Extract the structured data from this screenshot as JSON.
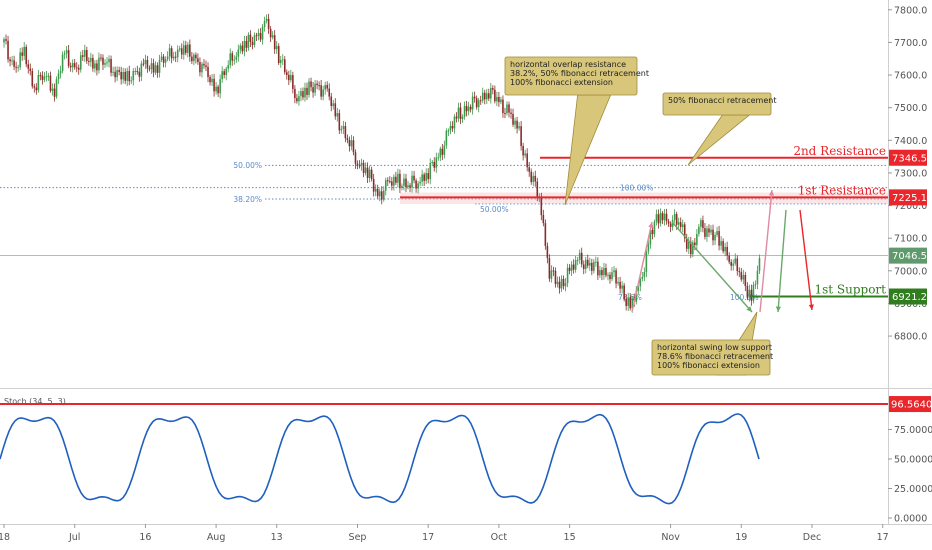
{
  "chart_data": [
    {
      "type": "candlestick",
      "ylim": [
        6650,
        7830
      ],
      "y_ticks": [
        "7800.0",
        "7700.0",
        "7600.0",
        "7500.0",
        "7400.0",
        "7300.0",
        "7200.0",
        "7100.0",
        "7000.0",
        "6900.0",
        "6800.0"
      ],
      "x_ticks": [
        {
          "label": "18",
          "x": 0
        },
        {
          "label": "Jul",
          "x": 7
        },
        {
          "label": "16",
          "x": 14
        },
        {
          "label": "Aug",
          "x": 21
        },
        {
          "label": "13",
          "x": 27
        },
        {
          "label": "Sep",
          "x": 35
        },
        {
          "label": "17",
          "x": 42
        },
        {
          "label": "Oct",
          "x": 49
        },
        {
          "label": "15",
          "x": 56
        },
        {
          "label": "Nov",
          "x": 66
        },
        {
          "label": "19",
          "x": 73
        },
        {
          "label": "Dec",
          "x": 80
        },
        {
          "label": "17",
          "x": 87
        }
      ],
      "close_path": [
        [
          0,
          7700
        ],
        [
          1,
          7620
        ],
        [
          2,
          7660
        ],
        [
          3,
          7570
        ],
        [
          4,
          7600
        ],
        [
          5,
          7560
        ],
        [
          6,
          7660
        ],
        [
          7,
          7620
        ],
        [
          8,
          7650
        ],
        [
          9,
          7640
        ],
        [
          10,
          7640
        ],
        [
          11,
          7620
        ],
        [
          12,
          7580
        ],
        [
          13,
          7610
        ],
        [
          14,
          7620
        ],
        [
          15,
          7630
        ],
        [
          16,
          7650
        ],
        [
          17,
          7680
        ],
        [
          18,
          7670
        ],
        [
          19,
          7650
        ],
        [
          20,
          7600
        ],
        [
          21,
          7560
        ],
        [
          22,
          7620
        ],
        [
          23,
          7680
        ],
        [
          24,
          7690
        ],
        [
          25,
          7720
        ],
        [
          26,
          7750
        ],
        [
          27,
          7680
        ],
        [
          28,
          7600
        ],
        [
          29,
          7540
        ],
        [
          30,
          7550
        ],
        [
          31,
          7570
        ],
        [
          32,
          7540
        ],
        [
          33,
          7470
        ],
        [
          34,
          7400
        ],
        [
          35,
          7340
        ],
        [
          36,
          7300
        ],
        [
          37,
          7230
        ],
        [
          38,
          7260
        ],
        [
          39,
          7280
        ],
        [
          40,
          7260
        ],
        [
          41,
          7280
        ],
        [
          42,
          7300
        ],
        [
          43,
          7350
        ],
        [
          44,
          7420
        ],
        [
          45,
          7480
        ],
        [
          46,
          7500
        ],
        [
          47,
          7530
        ],
        [
          48,
          7550
        ],
        [
          49,
          7520
        ],
        [
          50,
          7480
        ],
        [
          51,
          7420
        ],
        [
          52,
          7300
        ],
        [
          53,
          7230
        ],
        [
          54,
          7000
        ],
        [
          55,
          6950
        ],
        [
          56,
          7000
        ],
        [
          57,
          7030
        ],
        [
          58,
          7020
        ],
        [
          59,
          7000
        ],
        [
          60,
          7000
        ],
        [
          61,
          6950
        ],
        [
          62,
          6890
        ],
        [
          63,
          6950
        ],
        [
          64,
          7120
        ],
        [
          65,
          7170
        ],
        [
          66,
          7160
        ],
        [
          67,
          7140
        ],
        [
          68,
          7060
        ],
        [
          69,
          7130
        ],
        [
          70,
          7120
        ],
        [
          71,
          7080
        ],
        [
          72,
          7040
        ],
        [
          73,
          6980
        ],
        [
          74,
          6921
        ],
        [
          75,
          7040
        ]
      ],
      "horizontal_lines": [
        {
          "name": "2nd Resistance",
          "value": 7346.5,
          "label": "7346.5"
        },
        {
          "name": "1st Resistance",
          "value": 7225.1,
          "label": "7225.1"
        },
        {
          "name": "1st Support",
          "value": 6921.2,
          "label": "6921.2"
        },
        {
          "name": "",
          "value": 7046.5,
          "label": "7046.5"
        }
      ],
      "fib_levels": [
        {
          "label": "50.00%",
          "value": 7323
        },
        {
          "label": "38.20%",
          "value": 7220
        },
        {
          "label": "100.00%",
          "value": 7255
        },
        {
          "label": "50.00%",
          "value": 7205
        },
        {
          "label": "78.6%",
          "value": 6920
        },
        {
          "label": "100.0%",
          "value": 6920
        }
      ],
      "annotations": [
        {
          "lines": [
            "horizontal overlap resistance",
            "38.2%, 50% fibonacci retracement",
            "100% fibonacci extension"
          ]
        },
        {
          "lines": [
            "50% fibonacci retracement"
          ]
        },
        {
          "lines": [
            "horizontal swing low support",
            "78.6% fibonacci retracement",
            "100% fibonacci extension"
          ]
        }
      ]
    },
    {
      "type": "line",
      "title": "Stoch (34, 5, 3)",
      "ylim": [
        0,
        100
      ],
      "y_ticks": [
        "75.0000",
        "50.0000",
        "25.0000",
        "0.0000"
      ],
      "overbought_label": "96.5640",
      "series": [
        {
          "name": "",
          "color": "#1f5fbf"
        }
      ]
    }
  ],
  "colors": {
    "up": "#3b9a4b",
    "down": "#8b2a2a",
    "support": "#2f7d1e",
    "resistance": "#e8262b",
    "stoch": "#1f5fbf",
    "note_fill": "#d8c77a",
    "note_stroke": "#a08a3a"
  }
}
